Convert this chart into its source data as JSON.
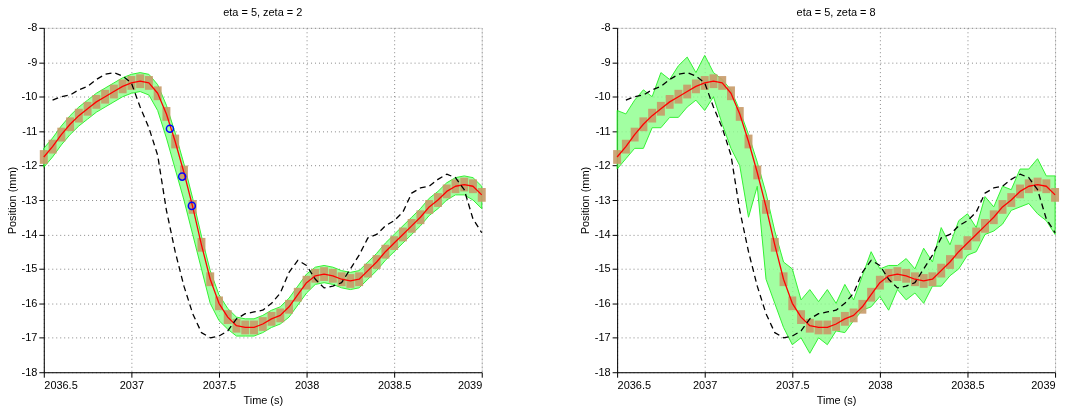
{
  "chart_data": [
    {
      "type": "line",
      "title": "eta = 5, zeta = 2",
      "xlabel": "Time (s)",
      "ylabel": "Position (mm)",
      "xlim": [
        2036.5,
        2039
      ],
      "xticks": [
        2036.5,
        2037,
        2037.5,
        2038,
        2038.5,
        2039
      ],
      "ylim": [
        -18,
        -8
      ],
      "yticks": [
        -18,
        -17,
        -16,
        -15,
        -14,
        -13,
        -12,
        -11,
        -10,
        -9,
        -8
      ],
      "grid": true,
      "x": [
        2036.5,
        2036.55,
        2036.6,
        2036.65,
        2036.7,
        2036.75,
        2036.8,
        2036.85,
        2036.9,
        2036.95,
        2037.0,
        2037.05,
        2037.1,
        2037.15,
        2037.2,
        2037.25,
        2037.3,
        2037.35,
        2037.4,
        2037.45,
        2037.5,
        2037.55,
        2037.6,
        2037.65,
        2037.7,
        2037.75,
        2037.8,
        2037.85,
        2037.9,
        2037.95,
        2038.0,
        2038.05,
        2038.1,
        2038.15,
        2038.2,
        2038.25,
        2038.3,
        2038.35,
        2038.4,
        2038.45,
        2038.5,
        2038.55,
        2038.6,
        2038.65,
        2038.7,
        2038.75,
        2038.8,
        2038.85,
        2038.9,
        2038.95,
        2039.0
      ],
      "series": [
        {
          "color": "#ff0000",
          "values": [
            -11.75,
            -11.45,
            -11.1,
            -10.8,
            -10.55,
            -10.35,
            -10.15,
            -10.0,
            -9.85,
            -9.7,
            -9.6,
            -9.55,
            -9.6,
            -9.9,
            -10.5,
            -11.3,
            -12.2,
            -13.2,
            -14.3,
            -15.3,
            -16.0,
            -16.4,
            -16.65,
            -16.7,
            -16.7,
            -16.6,
            -16.45,
            -16.35,
            -16.1,
            -15.75,
            -15.4,
            -15.2,
            -15.15,
            -15.2,
            -15.3,
            -15.35,
            -15.3,
            -15.05,
            -14.8,
            -14.5,
            -14.25,
            -14.0,
            -13.75,
            -13.5,
            -13.2,
            -13.0,
            -12.75,
            -12.6,
            -12.55,
            -12.6,
            -12.85
          ],
          "errors": [
            0.2,
            0.2,
            0.2,
            0.2,
            0.2,
            0.2,
            0.2,
            0.2,
            0.2,
            0.2,
            0.2,
            0.2,
            0.2,
            0.2,
            0.2,
            0.2,
            0.2,
            0.2,
            0.2,
            0.2,
            0.2,
            0.2,
            0.2,
            0.2,
            0.2,
            0.2,
            0.2,
            0.2,
            0.2,
            0.2,
            0.2,
            0.2,
            0.2,
            0.2,
            0.2,
            0.2,
            0.2,
            0.2,
            0.2,
            0.2,
            0.2,
            0.2,
            0.2,
            0.2,
            0.2,
            0.2,
            0.2,
            0.2,
            0.2,
            0.2,
            0.2
          ],
          "lower": [
            -12.05,
            -11.75,
            -11.4,
            -11.1,
            -10.85,
            -10.65,
            -10.45,
            -10.3,
            -10.15,
            -10.0,
            -9.9,
            -9.85,
            -9.95,
            -10.4,
            -11.2,
            -12.1,
            -13.0,
            -14.0,
            -15.0,
            -16.0,
            -16.5,
            -16.75,
            -16.95,
            -16.95,
            -16.95,
            -16.85,
            -16.7,
            -16.6,
            -16.4,
            -16.05,
            -15.7,
            -15.45,
            -15.4,
            -15.45,
            -15.55,
            -15.6,
            -15.55,
            -15.3,
            -15.05,
            -14.75,
            -14.5,
            -14.25,
            -14.0,
            -13.75,
            -13.45,
            -13.25,
            -13.0,
            -12.85,
            -12.85,
            -13.0,
            -13.25
          ],
          "upper": [
            -11.5,
            -11.2,
            -10.85,
            -10.55,
            -10.3,
            -10.1,
            -9.9,
            -9.75,
            -9.6,
            -9.45,
            -9.35,
            -9.3,
            -9.35,
            -9.65,
            -10.25,
            -11.05,
            -11.95,
            -12.95,
            -14.05,
            -15.05,
            -15.75,
            -16.15,
            -16.4,
            -16.45,
            -16.45,
            -16.35,
            -16.2,
            -16.1,
            -15.85,
            -15.5,
            -15.15,
            -14.95,
            -14.9,
            -14.95,
            -15.05,
            -15.1,
            -15.05,
            -14.8,
            -14.55,
            -14.25,
            -14.0,
            -13.75,
            -13.5,
            -13.25,
            -12.95,
            -12.75,
            -12.5,
            -12.35,
            -12.3,
            -12.35,
            -12.6
          ]
        },
        {
          "color": "#000000",
          "line_style": "dashed",
          "values": [
            null,
            -10.1,
            -10.0,
            -9.95,
            -9.8,
            -9.7,
            -9.5,
            -9.35,
            -9.3,
            -9.4,
            -9.6,
            -10.3,
            -10.9,
            -11.7,
            -13.3,
            -14.5,
            -15.5,
            -16.3,
            -16.85,
            -17.0,
            -16.95,
            -16.8,
            -16.45,
            -16.3,
            -16.25,
            -16.2,
            -16.0,
            -15.7,
            -15.1,
            -14.75,
            -14.9,
            -15.3,
            -15.55,
            -15.5,
            -15.4,
            -15.0,
            -14.6,
            -14.1,
            -14.0,
            -13.75,
            -13.6,
            -13.35,
            -12.8,
            -12.65,
            -12.6,
            -12.4,
            -12.25,
            -12.35,
            -12.7,
            -13.55,
            -13.95
          ]
        },
        {
          "type": "scatter",
          "color": "#0000ff",
          "marker": "circle",
          "x": [
            2037.22,
            2037.29,
            2037.345
          ],
          "values": [
            -10.93,
            -12.32,
            -13.17
          ]
        }
      ]
    },
    {
      "type": "line",
      "title": "eta = 5, zeta = 8",
      "xlabel": "Time (s)",
      "ylabel": "Position (mm)",
      "xlim": [
        2036.5,
        2039
      ],
      "xticks": [
        2036.5,
        2037,
        2037.5,
        2038,
        2038.5,
        2039
      ],
      "ylim": [
        -18,
        -8
      ],
      "yticks": [
        -18,
        -17,
        -16,
        -15,
        -14,
        -13,
        -12,
        -11,
        -10,
        -9,
        -8
      ],
      "grid": true,
      "x": [
        2036.5,
        2036.55,
        2036.6,
        2036.65,
        2036.7,
        2036.75,
        2036.8,
        2036.85,
        2036.9,
        2036.95,
        2037.0,
        2037.05,
        2037.1,
        2037.15,
        2037.2,
        2037.25,
        2037.3,
        2037.35,
        2037.4,
        2037.45,
        2037.5,
        2037.55,
        2037.6,
        2037.65,
        2037.7,
        2037.75,
        2037.8,
        2037.85,
        2037.9,
        2037.95,
        2038.0,
        2038.05,
        2038.1,
        2038.15,
        2038.2,
        2038.25,
        2038.3,
        2038.35,
        2038.4,
        2038.45,
        2038.5,
        2038.55,
        2038.6,
        2038.65,
        2038.7,
        2038.75,
        2038.8,
        2038.85,
        2038.9,
        2038.95,
        2039.0
      ],
      "series": [
        {
          "color": "#ff0000",
          "values": [
            -11.75,
            -11.45,
            -11.1,
            -10.8,
            -10.55,
            -10.35,
            -10.15,
            -10.0,
            -9.85,
            -9.7,
            -9.6,
            -9.55,
            -9.6,
            -9.9,
            -10.5,
            -11.3,
            -12.2,
            -13.2,
            -14.3,
            -15.3,
            -16.0,
            -16.4,
            -16.65,
            -16.7,
            -16.7,
            -16.6,
            -16.45,
            -16.35,
            -16.1,
            -15.75,
            -15.4,
            -15.2,
            -15.15,
            -15.2,
            -15.3,
            -15.35,
            -15.3,
            -15.05,
            -14.8,
            -14.5,
            -14.25,
            -14.0,
            -13.75,
            -13.5,
            -13.2,
            -13.0,
            -12.75,
            -12.6,
            -12.55,
            -12.6,
            -12.85
          ],
          "errors": [
            0.2,
            0.2,
            0.2,
            0.2,
            0.2,
            0.2,
            0.2,
            0.2,
            0.2,
            0.2,
            0.2,
            0.2,
            0.2,
            0.2,
            0.2,
            0.2,
            0.2,
            0.2,
            0.2,
            0.2,
            0.2,
            0.2,
            0.2,
            0.2,
            0.2,
            0.2,
            0.2,
            0.2,
            0.2,
            0.2,
            0.2,
            0.2,
            0.2,
            0.2,
            0.2,
            0.2,
            0.2,
            0.2,
            0.2,
            0.2,
            0.2,
            0.2,
            0.2,
            0.2,
            0.2,
            0.2,
            0.2,
            0.2,
            0.2,
            0.2,
            0.2
          ],
          "lower": [
            -12.1,
            -11.8,
            -11.5,
            -11.5,
            -10.9,
            -10.9,
            -10.6,
            -10.6,
            -10.3,
            -10.1,
            -10.4,
            -10.0,
            -10.8,
            -11.5,
            -12.0,
            -13.5,
            -12.6,
            -15.3,
            -16.0,
            -16.7,
            -17.2,
            -17.0,
            -17.45,
            -17.0,
            -17.2,
            -16.8,
            -16.85,
            -16.5,
            -16.2,
            -16.1,
            -15.8,
            -16.2,
            -15.6,
            -15.9,
            -15.7,
            -16.0,
            -15.5,
            -15.5,
            -15.2,
            -15.0,
            -14.6,
            -14.5,
            -14.0,
            -13.9,
            -13.7,
            -13.3,
            -13.2,
            -13.1,
            -13.4,
            -13.6,
            -14.0
          ],
          "upper": [
            -10.4,
            -10.5,
            -10.1,
            -9.8,
            -10.0,
            -9.3,
            -9.5,
            -9.1,
            -8.85,
            -9.3,
            -8.8,
            -9.3,
            -9.5,
            -9.8,
            -10.4,
            -11.1,
            -11.9,
            -12.8,
            -13.9,
            -14.8,
            -15.0,
            -15.9,
            -15.6,
            -15.95,
            -15.6,
            -16.0,
            -15.45,
            -15.9,
            -15.2,
            -14.5,
            -15.0,
            -14.9,
            -14.9,
            -14.7,
            -15.0,
            -14.4,
            -14.8,
            -13.8,
            -14.3,
            -13.6,
            -13.4,
            -13.8,
            -12.9,
            -13.2,
            -12.6,
            -12.7,
            -12.1,
            -12.1,
            -11.8,
            -12.3,
            -12.3
          ]
        },
        {
          "color": "#000000",
          "line_style": "dashed",
          "values": [
            null,
            -10.1,
            -10.0,
            -9.95,
            -9.8,
            -9.7,
            -9.5,
            -9.35,
            -9.3,
            -9.4,
            -9.6,
            -10.3,
            -10.9,
            -11.7,
            -13.3,
            -14.5,
            -15.5,
            -16.3,
            -16.85,
            -17.0,
            -16.95,
            -16.8,
            -16.45,
            -16.3,
            -16.25,
            -16.2,
            -16.0,
            -15.7,
            -15.1,
            -14.75,
            -14.9,
            -15.3,
            -15.55,
            -15.5,
            -15.4,
            -15.0,
            -14.6,
            -14.1,
            -14.0,
            -13.75,
            -13.6,
            -13.35,
            -12.8,
            -12.65,
            -12.6,
            -12.4,
            -12.25,
            -12.35,
            -12.7,
            -13.55,
            -13.95
          ]
        }
      ]
    }
  ]
}
